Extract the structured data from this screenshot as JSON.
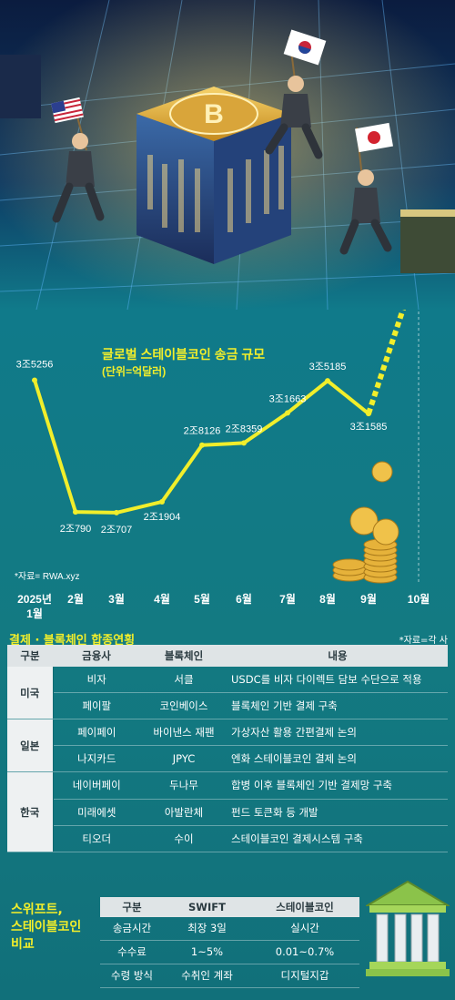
{
  "chart_data": {
    "type": "line",
    "title": "글로벌 스테이블코인 송금 규모",
    "subtitle": "(단위=억달러)",
    "source": "*자료= RWA.xyz",
    "categories": [
      {
        "line1": "2025년",
        "line2": "1월"
      },
      {
        "line1": "2월",
        "line2": ""
      },
      {
        "line1": "3월",
        "line2": ""
      },
      {
        "line1": "4월",
        "line2": ""
      },
      {
        "line1": "5월",
        "line2": ""
      },
      {
        "line1": "6월",
        "line2": ""
      },
      {
        "line1": "7월",
        "line2": ""
      },
      {
        "line1": "8월",
        "line2": ""
      },
      {
        "line1": "9월",
        "line2": ""
      },
      {
        "line1": "10월",
        "line2": ""
      }
    ],
    "values": [
      35256,
      20790,
      20707,
      21904,
      28126,
      28359,
      31663,
      35185,
      31585,
      null
    ],
    "labels": [
      "3조5256",
      "2조790",
      "2조707",
      "2조1904",
      "2조8126",
      "2조8359",
      "3조1663",
      "3조5185",
      "3조1585",
      ""
    ],
    "ylim": [
      18000,
      38000
    ],
    "colors": {
      "line": "#f1ee2b",
      "marker": "#f1ee2b",
      "title": "#f1ee2b"
    }
  },
  "table1": {
    "title": "결제 · 블록체인 합종연횡",
    "source": "*자료=각 사",
    "headers": [
      "구분",
      "금융사",
      "블록체인",
      "내용"
    ],
    "groups": [
      {
        "name": "미국",
        "rows": [
          {
            "company": "비자",
            "chain": "서클",
            "content": "USDC를 비자 다이렉트 담보 수단으로 적용"
          },
          {
            "company": "페이팔",
            "chain": "코인베이스",
            "content": "블록체인 기반 결제 구축"
          }
        ]
      },
      {
        "name": "일본",
        "rows": [
          {
            "company": "페이페이",
            "chain": "바이낸스 재팬",
            "content": "가상자산 활용 간편결제 논의"
          },
          {
            "company": "나지카드",
            "chain": "JPYC",
            "content": "엔화 스테이블코인 결제 논의"
          }
        ]
      },
      {
        "name": "한국",
        "rows": [
          {
            "company": "네이버페이",
            "chain": "두나무",
            "content": "합병 이후 블록체인 기반 결제망 구축"
          },
          {
            "company": "미래에셋",
            "chain": "아발란체",
            "content": "펀드 토큰화 등 개발"
          },
          {
            "company": "티오더",
            "chain": "수이",
            "content": "스테이블코인 결제시스템 구축"
          }
        ]
      }
    ]
  },
  "table2": {
    "title_line1": "스위프트,",
    "title_line2": "스테이블코인",
    "title_line3": "비교",
    "headers": [
      "구분",
      "SWIFT",
      "스테이블코인"
    ],
    "rows": [
      {
        "label": "송금시간",
        "swift": "최장 3일",
        "stable": "실시간"
      },
      {
        "label": "수수료",
        "swift": "1~5%",
        "stable": "0.01~0.7%"
      },
      {
        "label": "수령 방식",
        "swift": "수취인 계좌",
        "stable": "디지털지갑"
      }
    ]
  },
  "icons": [
    "bitcoin-cube-icon",
    "running-businessman-usa-flag-icon",
    "running-businessman-korea-flag-icon",
    "running-businessman-japan-flag-icon",
    "coin-stack-icon",
    "bank-building-icon"
  ],
  "colors": {
    "accent_yellow": "#f1ee2b",
    "teal_bg": "#137a82",
    "header_gray": "#dfe4e6",
    "gold": "#e6b23a"
  }
}
